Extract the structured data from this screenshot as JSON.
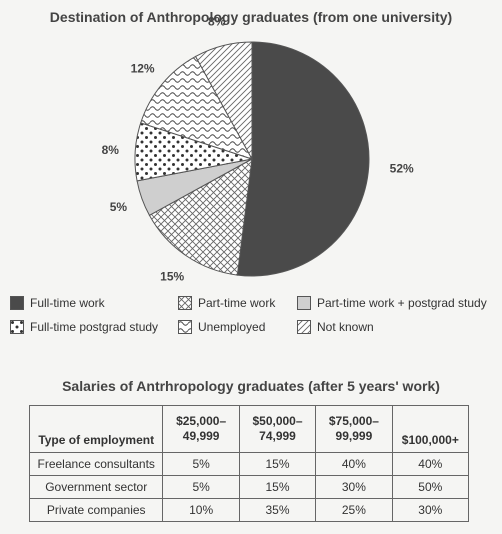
{
  "chart_data": [
    {
      "type": "pie",
      "title": "Destination of Anthropology graduates (from one university)",
      "slices": [
        {
          "label": "Full-time work",
          "value": 52,
          "value_label": "52%",
          "pattern": "solid-dark"
        },
        {
          "label": "Part-time work",
          "value": 15,
          "value_label": "15%",
          "pattern": "crosshatch"
        },
        {
          "label": "Part-time work + postgrad study",
          "value": 5,
          "value_label": "5%",
          "pattern": "light-grey"
        },
        {
          "label": "Full-time postgrad study",
          "value": 8,
          "value_label": "8%",
          "pattern": "dots"
        },
        {
          "label": "Unemployed",
          "value": 12,
          "value_label": "12%",
          "pattern": "wavy"
        },
        {
          "label": "Not known",
          "value": 8,
          "value_label": "8%",
          "pattern": "diagonal"
        }
      ],
      "legend": {
        "placement": "bottom",
        "items": [
          {
            "label": "Full-time work",
            "pattern": "solid-dark"
          },
          {
            "label": "Part-time work",
            "pattern": "crosshatch"
          },
          {
            "label": "Part-time work + postgrad study",
            "pattern": "light-grey"
          },
          {
            "label": "Full-time postgrad study",
            "pattern": "dots"
          },
          {
            "label": "Unemployed",
            "pattern": "wavy"
          },
          {
            "label": "Not known",
            "pattern": "diagonal"
          }
        ]
      },
      "colors": {
        "dark": "#4a4a4a",
        "light_grey": "#cfcfcf",
        "line": "#555555",
        "background": "#f5f5f3"
      }
    },
    {
      "type": "table",
      "title": "Salaries of Antrhropology graduates (after 5 years' work)",
      "columns": [
        {
          "lines": [
            "Type of employment"
          ]
        },
        {
          "lines": [
            "$25,000–",
            "49,999"
          ]
        },
        {
          "lines": [
            "$50,000–",
            "74,999"
          ]
        },
        {
          "lines": [
            "$75,000–",
            "99,999"
          ]
        },
        {
          "lines": [
            "$100,000+"
          ]
        }
      ],
      "rows": [
        [
          "Freelance consultants",
          "5%",
          "15%",
          "40%",
          "40%"
        ],
        [
          "Government sector",
          "5%",
          "15%",
          "30%",
          "50%"
        ],
        [
          "Private companies",
          "10%",
          "35%",
          "25%",
          "30%"
        ]
      ]
    }
  ]
}
